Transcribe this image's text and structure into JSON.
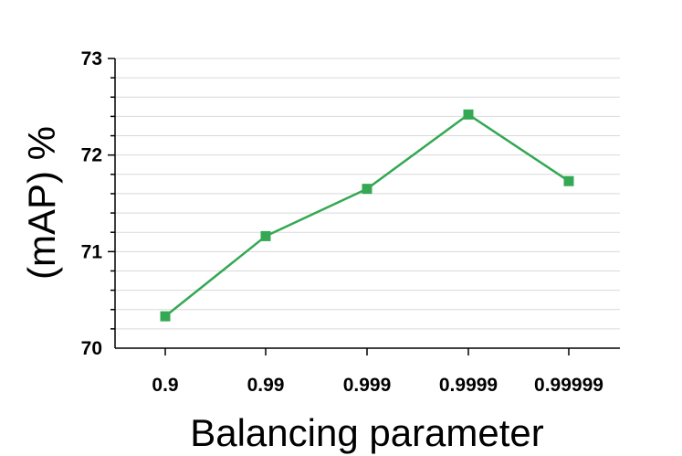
{
  "chart_data": {
    "type": "line",
    "title": "",
    "xlabel": "Balancing parameter",
    "ylabel": "(mAP) %",
    "categories": [
      "0.9",
      "0.99",
      "0.999",
      "0.9999",
      "0.99999"
    ],
    "series": [
      {
        "values": [
          70.33,
          71.16,
          71.65,
          72.42,
          71.73
        ],
        "color": "#34a853"
      }
    ],
    "ylim": [
      70,
      73
    ],
    "yticks": [
      70,
      71,
      72,
      73
    ],
    "y_minor_step": 0.2,
    "grid": true,
    "legend": "none",
    "marker": "square"
  }
}
